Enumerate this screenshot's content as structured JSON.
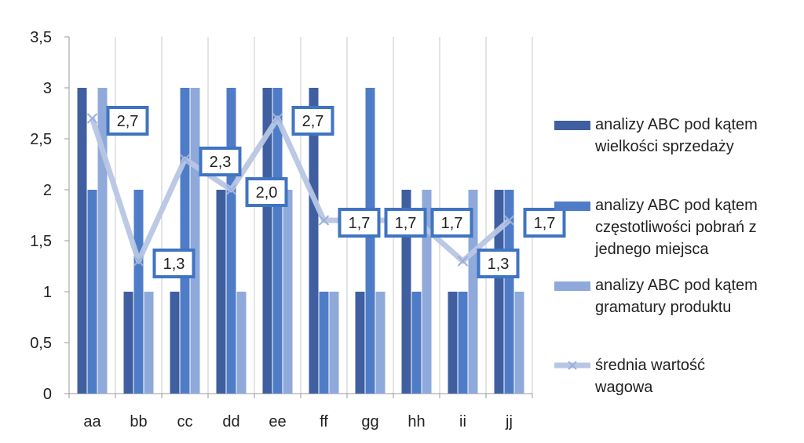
{
  "chart_data": {
    "type": "bar",
    "categories": [
      "aa",
      "bb",
      "cc",
      "dd",
      "ee",
      "ff",
      "gg",
      "hh",
      "ii",
      "jj"
    ],
    "ylim": [
      0,
      3.5
    ],
    "yticks": [
      "0",
      "0,5",
      "1",
      "1,5",
      "2",
      "2,5",
      "3",
      "3,5"
    ],
    "grid": "vertical",
    "legend_position": "right",
    "series": [
      {
        "name": "analizy ABC pod kątem wielkości sprzedaży",
        "type": "bar",
        "color": "#3F5FA0",
        "values": [
          3,
          1,
          1,
          2,
          3,
          3,
          1,
          2,
          1,
          2
        ]
      },
      {
        "name": "analizy ABC pod kątem częstotliwości pobrań z jednego miejsca",
        "type": "bar",
        "color": "#4F7CC7",
        "values": [
          2,
          2,
          3,
          3,
          3,
          1,
          3,
          1,
          1,
          2
        ]
      },
      {
        "name": "analizy ABC pod kątem gramatury produktu",
        "type": "bar",
        "color": "#8FA9DB",
        "values": [
          3,
          1,
          3,
          1,
          2,
          1,
          1,
          2,
          2,
          1
        ]
      },
      {
        "name": "średnia wartość wagowa",
        "type": "line",
        "color": "#B7C6E4",
        "values": [
          2.7,
          1.3,
          2.3,
          2.0,
          2.7,
          1.7,
          1.7,
          1.7,
          1.3,
          1.7
        ],
        "labels": [
          "2,7",
          "1,3",
          "2,3",
          "2,0",
          "2,7",
          "1,7",
          "1,7",
          "1,7",
          "1,3",
          "1,7"
        ]
      }
    ]
  },
  "legend": {
    "items": [
      {
        "lines": [
          "analizy ABC pod kątem",
          "wielkości sprzedaży"
        ]
      },
      {
        "lines": [
          "analizy ABC pod kątem",
          "częstotliwości pobrań z",
          "jednego miejsca"
        ]
      },
      {
        "lines": [
          "analizy ABC pod kątem",
          "gramatury produktu"
        ]
      },
      {
        "lines": [
          "średnia wartość",
          "wagowa"
        ]
      }
    ]
  }
}
